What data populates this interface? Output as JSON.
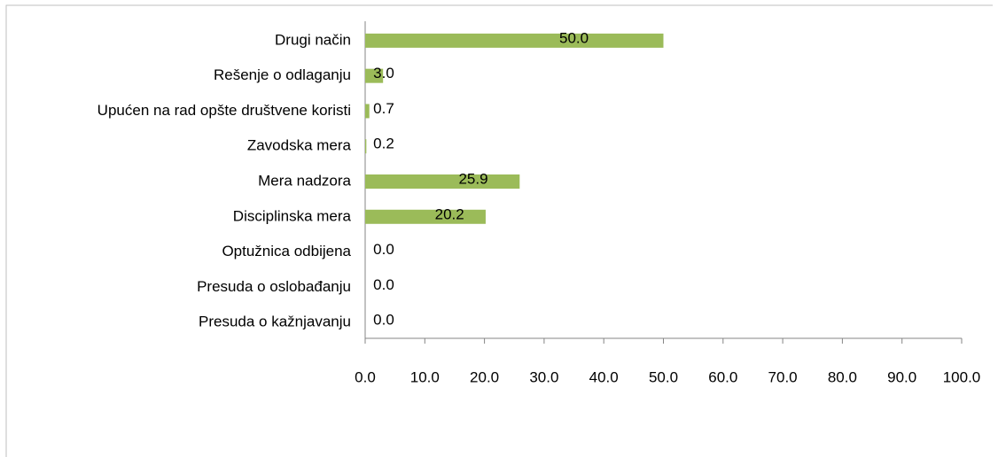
{
  "chart_data": {
    "type": "bar",
    "orientation": "horizontal",
    "categories": [
      "Drugi način",
      "Rešenje o odlaganju",
      "Upućen na rad opšte društvene koristi",
      "Zavodska mera",
      "Mera nadzora",
      "Disciplinska mera",
      "Optužnica odbijena",
      "Presuda o oslobađanju",
      "Presuda o kažnjavanju"
    ],
    "values": [
      50,
      3,
      0.7,
      0.2,
      25.9,
      20.2,
      0,
      0,
      0
    ],
    "value_labels": [
      "50.0",
      "3.0",
      "0.7",
      "0.2",
      "25.9",
      "20.2",
      "0.0",
      "0.0",
      "0.0"
    ],
    "color": "#9bbb59",
    "xlim": [
      0,
      100
    ],
    "xticks": [
      {
        "value": 0,
        "label": "0.0"
      },
      {
        "value": 10,
        "label": "10.0"
      },
      {
        "value": 20,
        "label": "20.0"
      },
      {
        "value": 30,
        "label": "30.0"
      },
      {
        "value": 40,
        "label": "40.0"
      },
      {
        "value": 50,
        "label": "50.0"
      },
      {
        "value": 60,
        "label": "60.0"
      },
      {
        "value": 70,
        "label": "70.0"
      },
      {
        "value": 80,
        "label": "80.0"
      },
      {
        "value": 90,
        "label": "90.0"
      },
      {
        "value": 100,
        "label": "100.0"
      }
    ],
    "grid": false
  }
}
